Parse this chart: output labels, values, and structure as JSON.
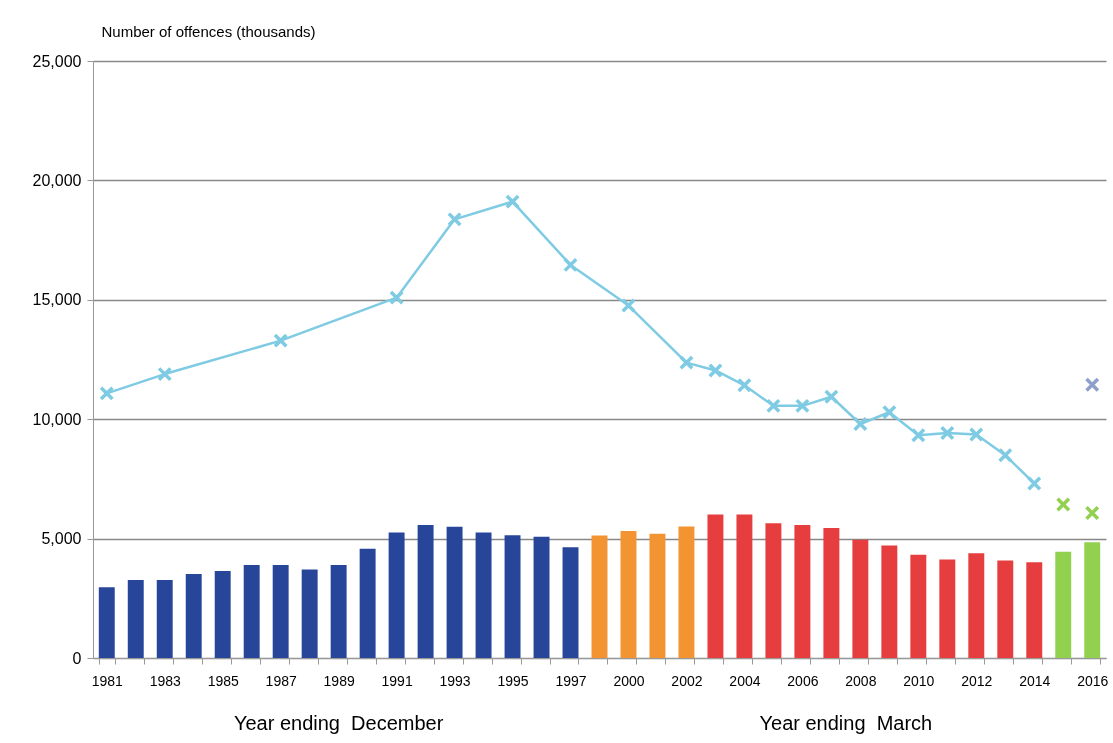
{
  "chart_data": {
    "type": "bar",
    "ylabel": "Number of offences (thousands)",
    "annotations": [
      "Year ending  December",
      "Year ending  March"
    ],
    "categories": [
      "1981",
      null,
      "1983",
      null,
      "1985",
      null,
      "1987",
      null,
      "1989",
      null,
      "1991",
      null,
      "1993",
      null,
      "1995",
      null,
      "1997",
      null,
      "2000",
      null,
      "2002",
      null,
      "2004",
      null,
      "2006",
      null,
      "2008",
      null,
      "2010",
      null,
      "2012",
      null,
      "2014",
      null,
      "2016"
    ],
    "series": [
      {
        "values": [
          2960,
          3270,
          3270,
          3520,
          3640,
          3890,
          3890,
          3710,
          3890,
          4580,
          5260,
          5570,
          5500,
          5260,
          5140,
          5080,
          4640,
          5130,
          5320,
          5200,
          5510,
          6010,
          6010,
          5640,
          5570,
          5440,
          4950,
          4710,
          4320,
          4130,
          4390,
          4080,
          4010,
          4450,
          4850
        ],
        "colors": [
          "#27469a",
          "#27469a",
          "#27469a",
          "#27469a",
          "#27469a",
          "#27469a",
          "#27469a",
          "#27469a",
          "#27469a",
          "#27469a",
          "#27469a",
          "#27469a",
          "#27469a",
          "#27469a",
          "#27469a",
          "#27469a",
          "#27469a",
          "#f39433",
          "#f39433",
          "#f39433",
          "#f39433",
          "#e63e3f",
          "#e63e3f",
          "#e63e3f",
          "#e63e3f",
          "#e63e3f",
          "#e63e3f",
          "#e63e3f",
          "#e63e3f",
          "#e63e3f",
          "#e63e3f",
          "#e63e3f",
          "#e63e3f",
          "#92d050",
          "#92d050"
        ]
      },
      {
        "type": "line",
        "color": "#7ecbe3",
        "marker": "cross",
        "values": [
          11080,
          null,
          11890,
          null,
          null,
          null,
          13290,
          null,
          null,
          null,
          15090,
          null,
          18370,
          null,
          19110,
          null,
          16460,
          null,
          14760,
          null,
          12370,
          12040,
          11420,
          10560,
          10560,
          10940,
          9800,
          10290,
          9330,
          9420,
          9360,
          8490,
          7310,
          null,
          null
        ]
      },
      {
        "type": "scatter",
        "color": "#92d050",
        "marker": "cross",
        "values": [
          null,
          null,
          null,
          null,
          null,
          null,
          null,
          null,
          null,
          null,
          null,
          null,
          null,
          null,
          null,
          null,
          null,
          null,
          null,
          null,
          null,
          null,
          null,
          null,
          null,
          null,
          null,
          null,
          null,
          null,
          null,
          null,
          null,
          6430,
          6070
        ]
      },
      {
        "type": "scatter",
        "color": "#8e9fcc",
        "marker": "cross",
        "values": [
          null,
          null,
          null,
          null,
          null,
          null,
          null,
          null,
          null,
          null,
          null,
          null,
          null,
          null,
          null,
          null,
          null,
          null,
          null,
          null,
          null,
          null,
          null,
          null,
          null,
          null,
          null,
          null,
          null,
          null,
          null,
          null,
          null,
          null,
          11440
        ]
      }
    ],
    "ylim": [
      0,
      25000
    ],
    "yticks": [
      {
        "value": 0,
        "label": "0"
      },
      {
        "value": 5000,
        "label": "5,000"
      },
      {
        "value": 10000,
        "label": "10,000"
      },
      {
        "value": 15000,
        "label": "15,000"
      },
      {
        "value": 20000,
        "label": "20,000"
      },
      {
        "value": 25000,
        "label": "25,000"
      }
    ],
    "grid": "y"
  }
}
